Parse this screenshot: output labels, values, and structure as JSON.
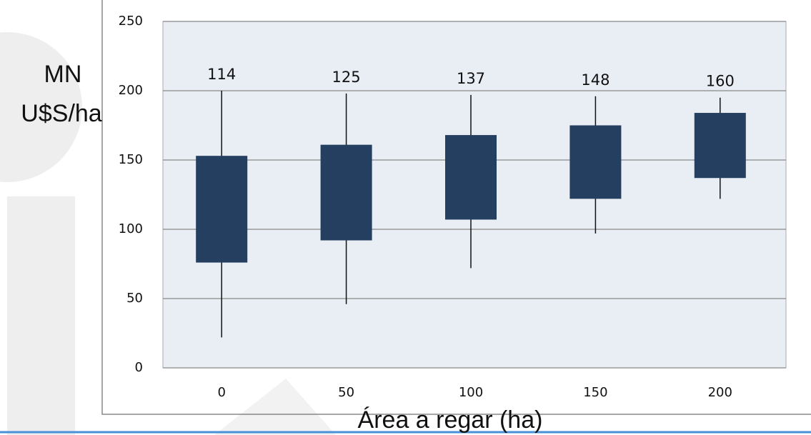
{
  "chart_data": {
    "type": "box",
    "ylabel": [
      "MN",
      "U$S/ha"
    ],
    "xlabel": "Área a regar (ha)",
    "categories": [
      "0",
      "50",
      "100",
      "150",
      "200"
    ],
    "whisker_high": [
      200,
      198,
      197,
      196,
      195
    ],
    "box_high": [
      153,
      161,
      168,
      175,
      184
    ],
    "box_low": [
      76,
      92,
      107,
      122,
      137
    ],
    "whisker_low": [
      22,
      46,
      72,
      97,
      122
    ],
    "labels": [
      114,
      125,
      137,
      148,
      160
    ],
    "color": "#243f60",
    "ylim": [
      0,
      250
    ],
    "yticks": [
      0,
      50,
      100,
      150,
      200,
      250
    ],
    "grid": true
  }
}
